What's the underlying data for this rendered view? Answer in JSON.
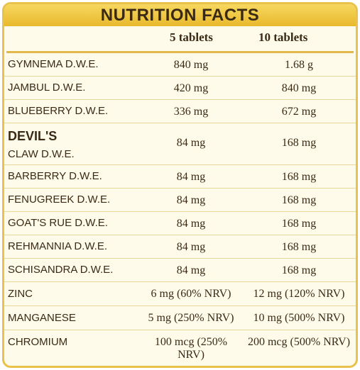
{
  "title": "NUTRITION FACTS",
  "columns": [
    "5 tablets",
    "10 tablets"
  ],
  "rows": [
    {
      "name": "GYMNEMA D.W.E.",
      "v1": "840 mg",
      "v2": "1.68 g"
    },
    {
      "name": "JAMBUL D.W.E.",
      "v1": "420 mg",
      "v2": "840 mg"
    },
    {
      "name": "BLUEBERRY D.W.E.",
      "v1": "336 mg",
      "v2": "672 mg"
    },
    {
      "name": "DEVIL'S",
      "name2": "CLAW D.W.E.",
      "v1": "84 mg",
      "v2": "168 mg"
    },
    {
      "name": "BARBERRY D.W.E.",
      "v1": "84 mg",
      "v2": "168 mg"
    },
    {
      "name": "FENUGREEK D.W.E.",
      "v1": "84 mg",
      "v2": "168 mg"
    },
    {
      "name": "GOAT'S RUE D.W.E.",
      "v1": "84 mg",
      "v2": "168 mg"
    },
    {
      "name": "REHMANNIA D.W.E.",
      "v1": "84 mg",
      "v2": "168 mg"
    },
    {
      "name": "SCHISANDRA D.W.E.",
      "v1": "84 mg",
      "v2": "168 mg"
    },
    {
      "name": "ZINC",
      "v1": "6 mg (60% NRV)",
      "v2": "12 mg (120% NRV)"
    },
    {
      "name": "MANGANESE",
      "v1": "5 mg (250% NRV)",
      "v2": "10 mg (500% NRV)"
    },
    {
      "name": "CHROMIUM",
      "v1": "100 mcg (250% NRV)",
      "v2": "200 mcg (500% NRV)"
    }
  ],
  "colors": {
    "border": "#e8c24a",
    "title_bar": "#f0c53c",
    "background": "#fefbea",
    "text": "#3a2a14"
  }
}
